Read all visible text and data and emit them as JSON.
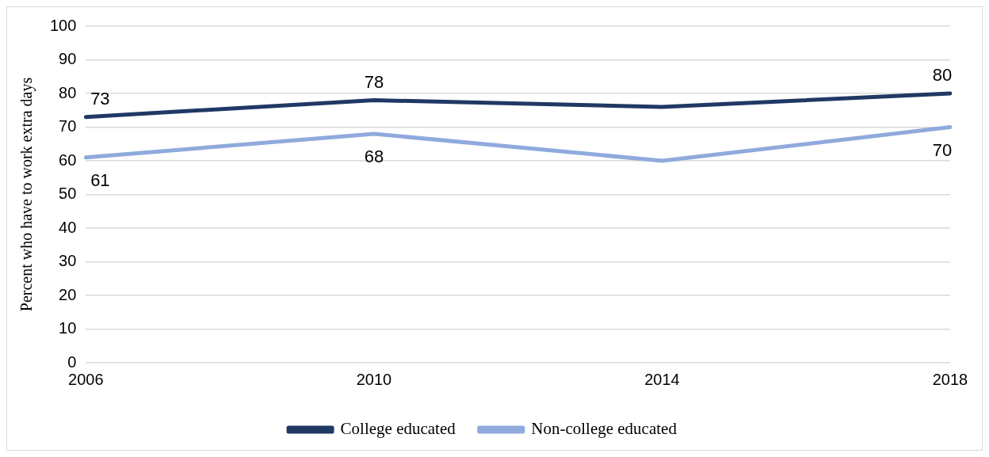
{
  "chart_data": {
    "type": "line",
    "ylabel": "Percent who have to work extra days",
    "categories": [
      "2006",
      "2010",
      "2014",
      "2018"
    ],
    "series": [
      {
        "name": "College educated",
        "color": "#203864",
        "values": [
          73,
          78,
          76,
          80
        ],
        "value_labels": [
          "73",
          "78",
          null,
          "80"
        ]
      },
      {
        "name": "Non-college educated",
        "color": "#8faadc",
        "values": [
          61,
          68,
          60,
          70
        ],
        "value_labels": [
          "61",
          "68",
          null,
          "70"
        ]
      }
    ],
    "ylim": [
      0,
      100
    ],
    "yticks": [
      0,
      10,
      20,
      30,
      40,
      50,
      60,
      70,
      80,
      90,
      100
    ],
    "grid": "y",
    "legend": "bottom",
    "marker": "none",
    "line_style": "solid"
  }
}
